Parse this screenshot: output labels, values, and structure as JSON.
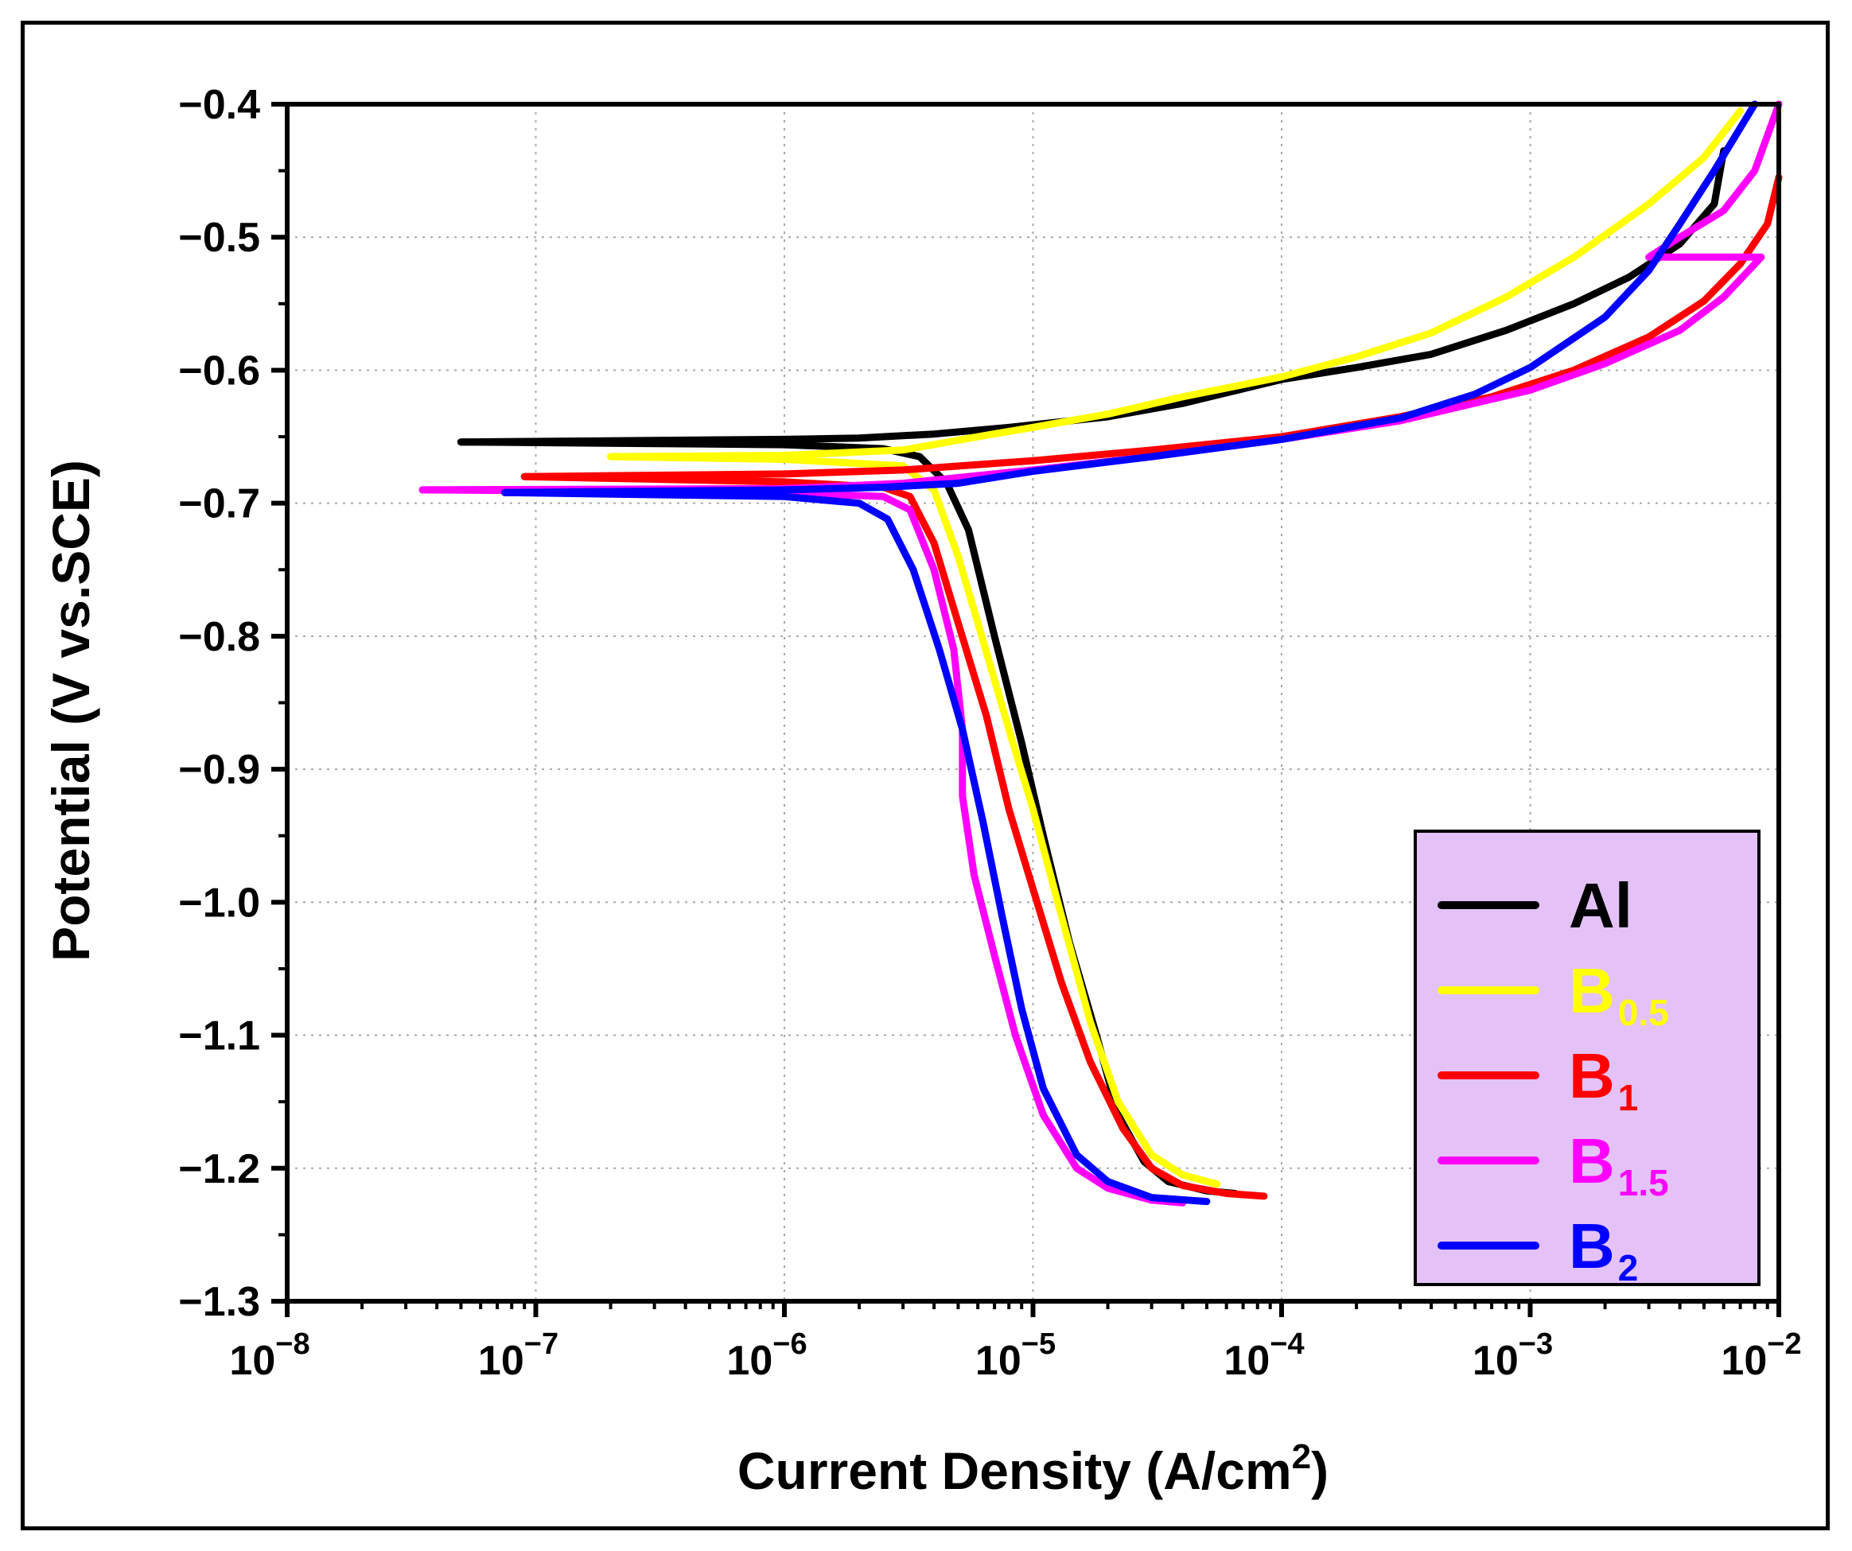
{
  "chart_data": {
    "type": "line",
    "title": "",
    "xlabel": "Current Density (A/cm",
    "xlabel_superscript": "2",
    "xlabel_suffix": ")",
    "ylabel": "Potential (V vs.SCE)",
    "xscale": "log",
    "xlim": [
      1e-08,
      0.01
    ],
    "ylim": [
      -1.3,
      -0.4
    ],
    "grid": true,
    "legend_position": "bottom-right",
    "legend_background": "#e4c2f7",
    "x_ticks": [
      {
        "base": "10",
        "exp": "−8",
        "value": 1e-08
      },
      {
        "base": "10",
        "exp": "−7",
        "value": 1e-07
      },
      {
        "base": "10",
        "exp": "−6",
        "value": 1e-06
      },
      {
        "base": "10",
        "exp": "−5",
        "value": 1e-05
      },
      {
        "base": "10",
        "exp": "−4",
        "value": 0.0001
      },
      {
        "base": "10",
        "exp": "−3",
        "value": 0.001
      },
      {
        "base": "10",
        "exp": "−2",
        "value": 0.01
      }
    ],
    "y_ticks": [
      {
        "label": "−0.4",
        "value": -0.4
      },
      {
        "label": "−0.5",
        "value": -0.5
      },
      {
        "label": "−0.6",
        "value": -0.6
      },
      {
        "label": "−0.7",
        "value": -0.7
      },
      {
        "label": "−0.8",
        "value": -0.8
      },
      {
        "label": "−0.9",
        "value": -0.9
      },
      {
        "label": "−1.0",
        "value": -1.0
      },
      {
        "label": "−1.1",
        "value": -1.1
      },
      {
        "label": "−1.2",
        "value": -1.2
      },
      {
        "label": "−1.3",
        "value": -1.3
      }
    ],
    "series": [
      {
        "name": "Al",
        "label_main": "Al",
        "label_sub": "",
        "color": "#000000",
        "anodic": [
          [
            5e-08,
            -0.654
          ],
          [
            1e-06,
            -0.652
          ],
          [
            2e-06,
            -0.651
          ],
          [
            4e-06,
            -0.648
          ],
          [
            8e-06,
            -0.643
          ],
          [
            2e-05,
            -0.635
          ],
          [
            4e-05,
            -0.625
          ],
          [
            6e-05,
            -0.617
          ],
          [
            0.0001,
            -0.607
          ],
          [
            0.0002,
            -0.598
          ],
          [
            0.0004,
            -0.588
          ],
          [
            0.0008,
            -0.57
          ],
          [
            0.0015,
            -0.55
          ],
          [
            0.0025,
            -0.53
          ],
          [
            0.004,
            -0.505
          ],
          [
            0.0055,
            -0.475
          ],
          [
            0.006,
            -0.435
          ]
        ],
        "cathodic": [
          [
            5e-08,
            -0.654
          ],
          [
            1e-06,
            -0.656
          ],
          [
            2.5e-06,
            -0.659
          ],
          [
            3.5e-06,
            -0.665
          ],
          [
            4.5e-06,
            -0.685
          ],
          [
            5.5e-06,
            -0.72
          ],
          [
            7e-06,
            -0.8
          ],
          [
            9e-06,
            -0.88
          ],
          [
            1.1e-05,
            -0.95
          ],
          [
            1.4e-05,
            -1.03
          ],
          [
            1.8e-05,
            -1.1
          ],
          [
            2.2e-05,
            -1.16
          ],
          [
            2.8e-05,
            -1.195
          ],
          [
            3.5e-05,
            -1.21
          ],
          [
            5e-05,
            -1.217
          ],
          [
            6.5e-05,
            -1.219
          ]
        ]
      },
      {
        "name": "B0.5",
        "label_main": "B",
        "label_sub": "0.5",
        "color": "#ffff00",
        "anodic": [
          [
            2e-07,
            -0.665
          ],
          [
            1e-06,
            -0.664
          ],
          [
            3e-06,
            -0.66
          ],
          [
            6e-06,
            -0.65
          ],
          [
            1e-05,
            -0.643
          ],
          [
            2e-05,
            -0.633
          ],
          [
            4e-05,
            -0.62
          ],
          [
            0.0001,
            -0.605
          ],
          [
            0.0002,
            -0.59
          ],
          [
            0.0004,
            -0.572
          ],
          [
            0.0008,
            -0.545
          ],
          [
            0.0015,
            -0.515
          ],
          [
            0.003,
            -0.475
          ],
          [
            0.005,
            -0.44
          ],
          [
            0.007,
            -0.405
          ]
        ],
        "cathodic": [
          [
            2e-07,
            -0.665
          ],
          [
            1e-06,
            -0.667
          ],
          [
            3e-06,
            -0.672
          ],
          [
            4e-06,
            -0.69
          ],
          [
            5e-06,
            -0.74
          ],
          [
            6e-06,
            -0.79
          ],
          [
            8e-06,
            -0.87
          ],
          [
            1e-05,
            -0.93
          ],
          [
            1.3e-05,
            -1.01
          ],
          [
            1.7e-05,
            -1.09
          ],
          [
            2.2e-05,
            -1.15
          ],
          [
            3e-05,
            -1.19
          ],
          [
            4e-05,
            -1.205
          ],
          [
            5.5e-05,
            -1.212
          ]
        ]
      },
      {
        "name": "B1",
        "label_main": "B",
        "label_sub": "1",
        "color": "#ff0000",
        "anodic": [
          [
            9e-08,
            -0.68
          ],
          [
            1e-06,
            -0.678
          ],
          [
            3e-06,
            -0.675
          ],
          [
            1e-05,
            -0.668
          ],
          [
            3e-05,
            -0.66
          ],
          [
            0.0001,
            -0.65
          ],
          [
            0.0003,
            -0.635
          ],
          [
            0.0007,
            -0.62
          ],
          [
            0.0015,
            -0.6
          ],
          [
            0.003,
            -0.575
          ],
          [
            0.005,
            -0.548
          ],
          [
            0.007,
            -0.52
          ],
          [
            0.009,
            -0.49
          ],
          [
            0.01,
            -0.455
          ]
        ],
        "cathodic": [
          [
            9e-08,
            -0.68
          ],
          [
            1e-06,
            -0.684
          ],
          [
            2.5e-06,
            -0.688
          ],
          [
            3.2e-06,
            -0.695
          ],
          [
            4e-06,
            -0.73
          ],
          [
            5e-06,
            -0.79
          ],
          [
            6.5e-06,
            -0.86
          ],
          [
            8e-06,
            -0.93
          ],
          [
            1e-05,
            -0.99
          ],
          [
            1.3e-05,
            -1.06
          ],
          [
            1.7e-05,
            -1.12
          ],
          [
            2.3e-05,
            -1.17
          ],
          [
            3e-05,
            -1.2
          ],
          [
            4e-05,
            -1.213
          ],
          [
            6e-05,
            -1.219
          ],
          [
            8.5e-05,
            -1.221
          ]
        ]
      },
      {
        "name": "B1.5",
        "label_main": "B",
        "label_sub": "1.5",
        "color": "#ff00ff",
        "anodic": [
          [
            3.5e-08,
            -0.69
          ],
          [
            1e-06,
            -0.689
          ],
          [
            3e-06,
            -0.685
          ],
          [
            1e-05,
            -0.675
          ],
          [
            3e-05,
            -0.665
          ],
          [
            0.0001,
            -0.652
          ],
          [
            0.0003,
            -0.638
          ],
          [
            0.001,
            -0.615
          ],
          [
            0.002,
            -0.595
          ],
          [
            0.004,
            -0.57
          ],
          [
            0.006,
            -0.545
          ],
          [
            0.0085,
            -0.515
          ],
          [
            0.003,
            -0.515
          ],
          [
            0.004,
            -0.5
          ],
          [
            0.006,
            -0.48
          ],
          [
            0.008,
            -0.45
          ],
          [
            0.01,
            -0.4
          ]
        ],
        "cathodic": [
          [
            3.5e-08,
            -0.69
          ],
          [
            1e-06,
            -0.692
          ],
          [
            2.5e-06,
            -0.695
          ],
          [
            3.2e-06,
            -0.705
          ],
          [
            4e-06,
            -0.75
          ],
          [
            4.8e-06,
            -0.81
          ],
          [
            5.2e-06,
            -0.87
          ],
          [
            5.2e-06,
            -0.92
          ],
          [
            5.8e-06,
            -0.98
          ],
          [
            7e-06,
            -1.04
          ],
          [
            8.5e-06,
            -1.1
          ],
          [
            1.1e-05,
            -1.16
          ],
          [
            1.5e-05,
            -1.2
          ],
          [
            2e-05,
            -1.215
          ],
          [
            3e-05,
            -1.224
          ],
          [
            4e-05,
            -1.226
          ]
        ]
      },
      {
        "name": "B2",
        "label_main": "B",
        "label_sub": "2",
        "color": "#0000ff",
        "anodic": [
          [
            7.5e-08,
            -0.692
          ],
          [
            1e-06,
            -0.69
          ],
          [
            2.5e-06,
            -0.688
          ],
          [
            5e-06,
            -0.685
          ],
          [
            1e-05,
            -0.676
          ],
          [
            3e-05,
            -0.665
          ],
          [
            0.0001,
            -0.652
          ],
          [
            0.0003,
            -0.636
          ],
          [
            0.0006,
            -0.618
          ],
          [
            0.001,
            -0.598
          ],
          [
            0.002,
            -0.56
          ],
          [
            0.003,
            -0.525
          ],
          [
            0.004,
            -0.49
          ],
          [
            0.0055,
            -0.45
          ],
          [
            0.008,
            -0.4
          ]
        ],
        "cathodic": [
          [
            7.5e-08,
            -0.692
          ],
          [
            1e-06,
            -0.695
          ],
          [
            2e-06,
            -0.7
          ],
          [
            2.6e-06,
            -0.712
          ],
          [
            3.3e-06,
            -0.75
          ],
          [
            4.2e-06,
            -0.81
          ],
          [
            5.2e-06,
            -0.87
          ],
          [
            6.3e-06,
            -0.94
          ],
          [
            7.5e-06,
            -1.01
          ],
          [
            9e-06,
            -1.08
          ],
          [
            1.1e-05,
            -1.14
          ],
          [
            1.5e-05,
            -1.19
          ],
          [
            2e-05,
            -1.21
          ],
          [
            3e-05,
            -1.222
          ],
          [
            5e-05,
            -1.225
          ]
        ]
      }
    ]
  }
}
